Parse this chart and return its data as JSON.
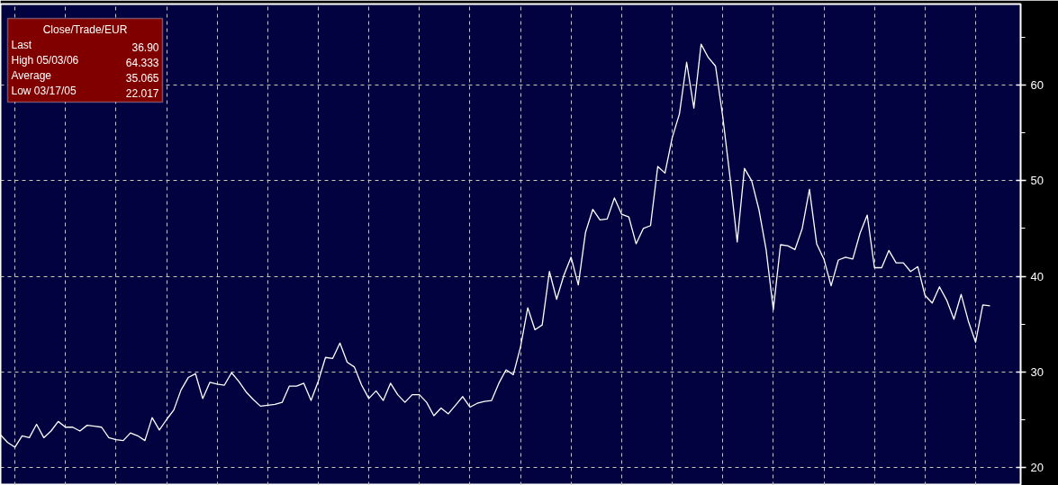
{
  "chart_data": {
    "type": "line",
    "categories": [
      null,
      null,
      null,
      null,
      null,
      null,
      null,
      null,
      null,
      null,
      null,
      null,
      null,
      null,
      null,
      null,
      null,
      null,
      null,
      null,
      null,
      null,
      null,
      null,
      null,
      null,
      null,
      null,
      null,
      null,
      null,
      null,
      null,
      null,
      null,
      null,
      null,
      null,
      null,
      null,
      null,
      null,
      null,
      null,
      null,
      null,
      null,
      null,
      null,
      null,
      null,
      null,
      null,
      null,
      null,
      null,
      null,
      null,
      null,
      null,
      null,
      null,
      null,
      null,
      null,
      null,
      null,
      null,
      null,
      null,
      null,
      null,
      null,
      null,
      null,
      null,
      null,
      null,
      null,
      null,
      null,
      null,
      null,
      null,
      null,
      null,
      null,
      null,
      null,
      null,
      null,
      null,
      null,
      null,
      null,
      null,
      null,
      null,
      null,
      null,
      null,
      null,
      null,
      null,
      null,
      null,
      null,
      null,
      null,
      null,
      null,
      null,
      null,
      null,
      null,
      null,
      null,
      null,
      null,
      null,
      null,
      null,
      null,
      null,
      null,
      null,
      null,
      null,
      null,
      null,
      null,
      null,
      null,
      null,
      null,
      null,
      null,
      null
    ],
    "series": [
      {
        "color": "#ffffff",
        "values": [
          23.4,
          22.6,
          22.1,
          23.3,
          23.1,
          24.5,
          23.1,
          23.8,
          24.8,
          24.2,
          24.2,
          23.8,
          24.4,
          24.3,
          24.2,
          23.1,
          22.9,
          22.8,
          23.6,
          23.3,
          22.8,
          25.2,
          23.9,
          25.0,
          26.0,
          28.1,
          29.4,
          29.8,
          27.2,
          28.9,
          28.7,
          28.6,
          29.9,
          29.0,
          27.9,
          27.1,
          26.4,
          26.5,
          26.6,
          26.8,
          28.5,
          28.5,
          28.8,
          27.0,
          29.0,
          31.5,
          31.4,
          33.0,
          31.0,
          30.5,
          28.6,
          27.2,
          28.0,
          27.0,
          28.8,
          27.6,
          26.8,
          27.6,
          27.6,
          26.8,
          25.4,
          26.2,
          25.6,
          26.5,
          27.4,
          26.3,
          26.7,
          26.9,
          27.0,
          28.8,
          30.2,
          29.7,
          32.6,
          36.7,
          34.4,
          34.9,
          40.5,
          37.6,
          40.1,
          42.0,
          39.1,
          44.6,
          47.0,
          45.9,
          46.0,
          48.2,
          46.5,
          46.2,
          43.4,
          45.0,
          45.3,
          51.5,
          50.8,
          54.5,
          57.0,
          62.4,
          57.6,
          64.3,
          62.9,
          62.0,
          56.7,
          50.4,
          43.6,
          51.3,
          50.0,
          47.0,
          42.8,
          36.5,
          43.3,
          43.2,
          42.8,
          45.0,
          49.1,
          43.4,
          41.8,
          39.0,
          41.7,
          42.0,
          41.8,
          44.5,
          46.4,
          40.9,
          40.9,
          42.7,
          41.4,
          41.4,
          40.5,
          41.0,
          38.0,
          37.2,
          38.9,
          37.5,
          35.5,
          38.1,
          35.3,
          33.1,
          37.0,
          36.9
        ]
      }
    ],
    "ylim": [
      18.1,
      68.5
    ],
    "yticks": [
      20,
      30,
      40,
      50,
      60
    ],
    "grid": true,
    "tick_labels": "y",
    "annotations": [
      "Close/Trade/EUR",
      "Last 36.90",
      "High 05/03/06 64.333",
      "Average 35.065",
      "Low 03/17/05 22.017"
    ]
  }
}
